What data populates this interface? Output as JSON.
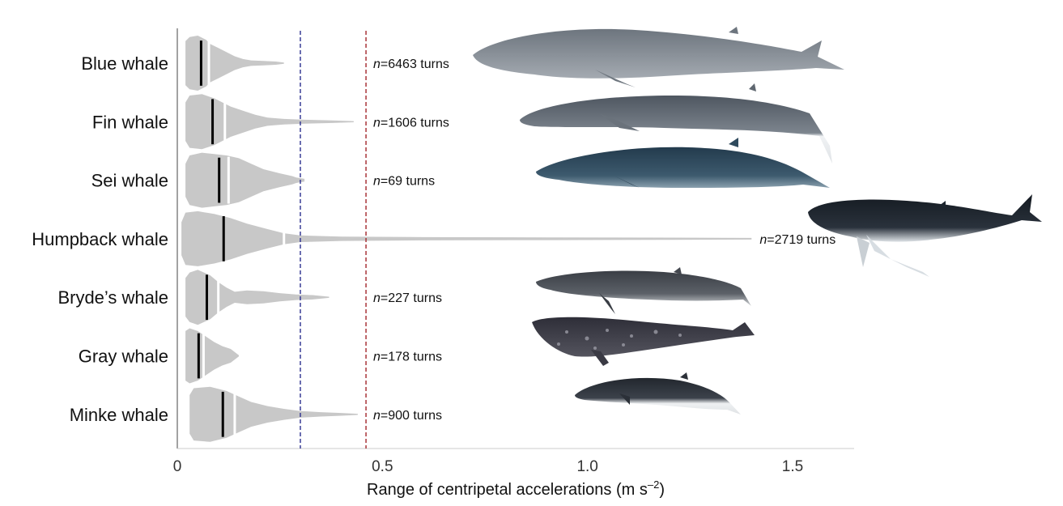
{
  "chart_data": {
    "type": "violin",
    "xlabel": "Range of centripetal accelerations (m s",
    "xlabel_exponent": "–2",
    "xlabel_close": ")",
    "xlim": [
      0,
      1.65
    ],
    "xticks": [
      0,
      0.5,
      1.0,
      1.5
    ],
    "xtick_labels": [
      "0",
      "0.5",
      "1.0",
      "1.5"
    ],
    "reference_lines": [
      {
        "x": 0.3,
        "style": "dashed",
        "color": "#2b2f8f"
      },
      {
        "x": 0.46,
        "style": "dashed",
        "color": "#a3262a"
      }
    ],
    "fill_color": "#c8c8c8",
    "median_color": "#000000",
    "species": [
      {
        "name": "Blue whale",
        "n_label": "=6463 turns",
        "median": 0.058,
        "max": 0.26,
        "quantile_mark": 0.077,
        "profile": [
          [
            0.02,
            0.8
          ],
          [
            0.03,
            0.95
          ],
          [
            0.05,
            1.0
          ],
          [
            0.07,
            0.85
          ],
          [
            0.08,
            0.7
          ],
          [
            0.1,
            0.55
          ],
          [
            0.12,
            0.4
          ],
          [
            0.14,
            0.25
          ],
          [
            0.16,
            0.15
          ],
          [
            0.18,
            0.1
          ],
          [
            0.21,
            0.08
          ],
          [
            0.24,
            0.06
          ],
          [
            0.26,
            0.02
          ]
        ]
      },
      {
        "name": "Fin whale",
        "n_label": "=1606 turns",
        "median": 0.086,
        "max": 0.43,
        "quantile_mark": 0.116,
        "profile": [
          [
            0.02,
            0.7
          ],
          [
            0.03,
            0.95
          ],
          [
            0.06,
            1.0
          ],
          [
            0.09,
            0.85
          ],
          [
            0.11,
            0.7
          ],
          [
            0.13,
            0.55
          ],
          [
            0.16,
            0.4
          ],
          [
            0.19,
            0.25
          ],
          [
            0.22,
            0.15
          ],
          [
            0.26,
            0.1
          ],
          [
            0.31,
            0.07
          ],
          [
            0.37,
            0.05
          ],
          [
            0.43,
            0.02
          ]
        ]
      },
      {
        "name": "Sei whale",
        "n_label": "=69 turns",
        "median": 0.102,
        "max": 0.31,
        "quantile_mark": 0.125,
        "profile": [
          [
            0.02,
            0.6
          ],
          [
            0.03,
            0.9
          ],
          [
            0.06,
            1.0
          ],
          [
            0.09,
            0.95
          ],
          [
            0.12,
            0.9
          ],
          [
            0.15,
            0.8
          ],
          [
            0.18,
            0.6
          ],
          [
            0.21,
            0.4
          ],
          [
            0.25,
            0.25
          ],
          [
            0.28,
            0.15
          ],
          [
            0.29,
            0.1
          ],
          [
            0.31,
            0.05
          ]
        ]
      },
      {
        "name": "Humpback whale",
        "n_label": "=2719 turns",
        "median": 0.113,
        "max": 1.4,
        "quantile_mark": 0.26,
        "profile": [
          [
            0.01,
            0.6
          ],
          [
            0.02,
            0.95
          ],
          [
            0.05,
            1.0
          ],
          [
            0.09,
            0.9
          ],
          [
            0.13,
            0.75
          ],
          [
            0.17,
            0.55
          ],
          [
            0.22,
            0.35
          ],
          [
            0.26,
            0.2
          ],
          [
            0.3,
            0.12
          ],
          [
            0.4,
            0.08
          ],
          [
            0.6,
            0.06
          ],
          [
            0.9,
            0.05
          ],
          [
            1.2,
            0.04
          ],
          [
            1.4,
            0.03
          ]
        ]
      },
      {
        "name": "Bryde’s whale",
        "n_label": "=227 turns",
        "median": 0.072,
        "max": 0.37,
        "quantile_mark": 0.1,
        "profile": [
          [
            0.02,
            0.7
          ],
          [
            0.03,
            0.9
          ],
          [
            0.05,
            1.0
          ],
          [
            0.08,
            0.8
          ],
          [
            0.1,
            0.55
          ],
          [
            0.12,
            0.35
          ],
          [
            0.14,
            0.2
          ],
          [
            0.17,
            0.25
          ],
          [
            0.21,
            0.22
          ],
          [
            0.25,
            0.15
          ],
          [
            0.29,
            0.1
          ],
          [
            0.33,
            0.08
          ],
          [
            0.37,
            0.02
          ]
        ]
      },
      {
        "name": "Gray whale",
        "n_label": "=178 turns",
        "median": 0.052,
        "max": 0.15,
        "quantile_mark": 0.064,
        "profile": [
          [
            0.02,
            0.9
          ],
          [
            0.03,
            1.0
          ],
          [
            0.05,
            0.9
          ],
          [
            0.07,
            0.7
          ],
          [
            0.09,
            0.5
          ],
          [
            0.11,
            0.35
          ],
          [
            0.13,
            0.25
          ],
          [
            0.15,
            0.02
          ]
        ]
      },
      {
        "name": "Minke whale",
        "n_label": "=900 turns",
        "median": 0.111,
        "max": 0.44,
        "quantile_mark": 0.14,
        "profile": [
          [
            0.03,
            0.7
          ],
          [
            0.04,
            0.95
          ],
          [
            0.08,
            1.0
          ],
          [
            0.12,
            0.85
          ],
          [
            0.15,
            0.65
          ],
          [
            0.18,
            0.45
          ],
          [
            0.22,
            0.3
          ],
          [
            0.26,
            0.2
          ],
          [
            0.3,
            0.12
          ],
          [
            0.35,
            0.08
          ],
          [
            0.4,
            0.05
          ],
          [
            0.44,
            0.02
          ]
        ]
      }
    ]
  },
  "illustrations": [
    {
      "name": "blue-whale-illustration",
      "body": "#7c848d",
      "belly": "#9aa1a8"
    },
    {
      "name": "fin-whale-illustration",
      "body": "#5f6770",
      "belly": "#f2f3f4"
    },
    {
      "name": "sei-whale-illustration",
      "body": "#2f4a5d",
      "belly": "#7d93a3"
    },
    {
      "name": "humpback-whale-illustration",
      "body": "#1d252e",
      "belly": "#e8ebee"
    },
    {
      "name": "brydes-whale-illustration",
      "body": "#44484f",
      "belly": "#c9ccd0"
    },
    {
      "name": "gray-whale-illustration",
      "body": "#3a3a44",
      "belly": "#8a8a94"
    },
    {
      "name": "minke-whale-illustration",
      "body": "#2b3038",
      "belly": "#eceff2"
    }
  ]
}
